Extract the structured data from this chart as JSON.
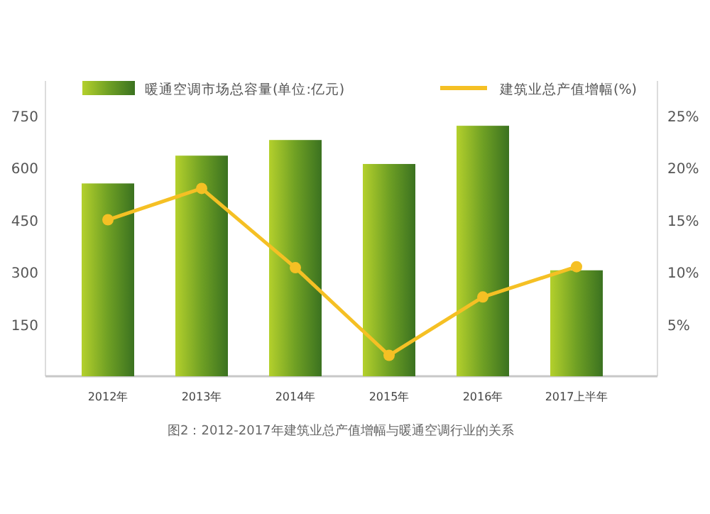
{
  "chart_data": {
    "type": "bar",
    "categories": [
      "2012年",
      "2013年",
      "2014年",
      "2015年",
      "2016年",
      "2017上半年"
    ],
    "series": [
      {
        "name": "暖通空调市场总容量(单位:亿元)",
        "color": "#6fa024",
        "values": [
          555,
          635,
          680,
          611,
          721,
          305
        ]
      },
      {
        "type": "line",
        "name": "建筑业总产值增幅(%)",
        "color": "#f5c024",
        "axis": "y2",
        "marker": "circle",
        "values": [
          15,
          18,
          10.4,
          2,
          7.6,
          10.5
        ]
      }
    ],
    "ylim": [
      0,
      850
    ],
    "yticks": [
      150,
      300,
      450,
      600,
      750
    ],
    "y2lim": [
      0,
      28.3
    ],
    "y2ticks": [
      {
        "value": 5,
        "label": "5%"
      },
      {
        "value": 10,
        "label": "10%"
      },
      {
        "value": 15,
        "label": "15%"
      },
      {
        "value": 20,
        "label": "20%"
      },
      {
        "value": 25,
        "label": "25%"
      }
    ],
    "legend": "top",
    "annotations": [
      "图2：2012-2017年建筑业总产值增幅与暖通空调行业的关系"
    ]
  }
}
